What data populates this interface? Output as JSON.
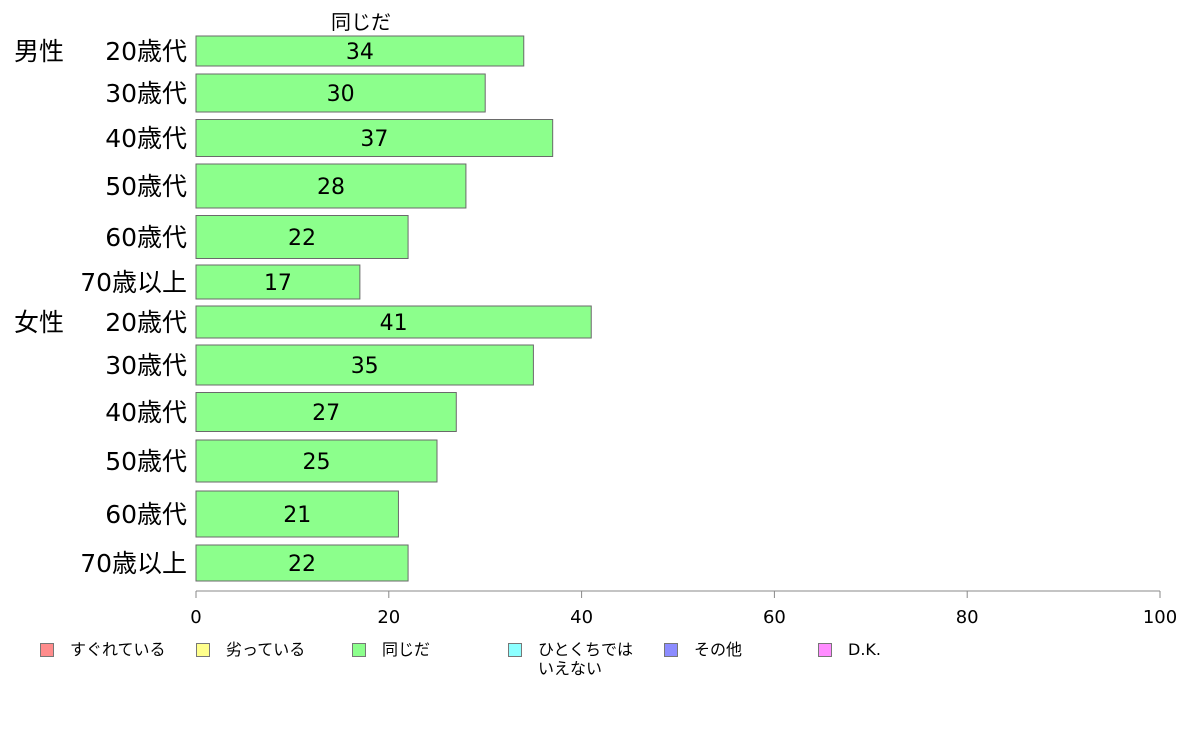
{
  "chart_data": {
    "type": "bar",
    "orientation": "horizontal",
    "series_title": "同じだ",
    "groups": [
      {
        "label": "男性",
        "start_index": 0
      },
      {
        "label": "女性",
        "start_index": 6
      }
    ],
    "categories": [
      "20歳代",
      "30歳代",
      "40歳代",
      "50歳代",
      "60歳代",
      "70歳以上",
      "20歳代",
      "30歳代",
      "40歳代",
      "50歳代",
      "60歳代",
      "70歳以上"
    ],
    "series": [
      {
        "name": "同じだ",
        "color": "#8cff8c",
        "values": [
          34,
          30,
          37,
          28,
          22,
          17,
          41,
          35,
          27,
          25,
          21,
          22
        ]
      }
    ],
    "xlim": [
      0,
      100
    ],
    "xticks": [
      0,
      20,
      40,
      60,
      80,
      100
    ],
    "grid": false,
    "legend_position": "bottom",
    "legend": [
      {
        "label": "すぐれている",
        "color": "#ff8c8c"
      },
      {
        "label": "劣っている",
        "color": "#ffff8c"
      },
      {
        "label": "同じだ",
        "color": "#8cff8c"
      },
      {
        "label": "ひとくちでは\nいえない",
        "color": "#8cffff"
      },
      {
        "label": "その他",
        "color": "#8c8cff"
      },
      {
        "label": "D.K.",
        "color": "#ff8cff"
      }
    ]
  }
}
